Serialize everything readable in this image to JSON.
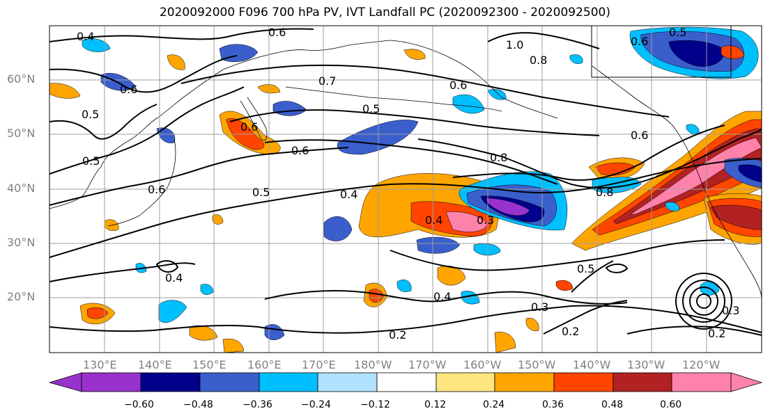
{
  "title": "2020092000 F096 700 hPa PV, IVT Landfall PC (2020092300 - 2020092500)",
  "axes": {
    "lat_labels": [
      "60°N",
      "50°N",
      "40°N",
      "30°N",
      "20°N"
    ],
    "lon_labels": [
      "130°E",
      "140°E",
      "150°E",
      "160°E",
      "170°E",
      "180°W",
      "170°W",
      "160°W",
      "150°W",
      "140°W",
      "130°W",
      "120°W"
    ],
    "grid": true
  },
  "contour_labels": [
    "0.4",
    "0.6",
    "0.6",
    "0.7",
    "0.5",
    "0.6",
    "1.0",
    "0.8",
    "0.5",
    "0.6",
    "0.6",
    "0.5",
    "0.6",
    "0.5",
    "0.4",
    "0.8",
    "0.6",
    "0.8",
    "0.4",
    "0.3",
    "0.4",
    "0.5",
    "0.4",
    "0.3",
    "0.2",
    "0.2",
    "0.3",
    "0.2",
    "0.5",
    "0.6"
  ],
  "colorbar": {
    "ticks": [
      "−0.60",
      "−0.48",
      "−0.36",
      "−0.24",
      "−0.12",
      "0.12",
      "0.24",
      "0.36",
      "0.48",
      "0.60"
    ],
    "colors": [
      "#9932CC",
      "#00008B",
      "#3A5FCD",
      "#00BFFF",
      "#B0E2FF",
      "#FFFFFF",
      "#FFE680",
      "#FFA500",
      "#FF4500",
      "#B22222",
      "#FF82AB"
    ]
  }
}
